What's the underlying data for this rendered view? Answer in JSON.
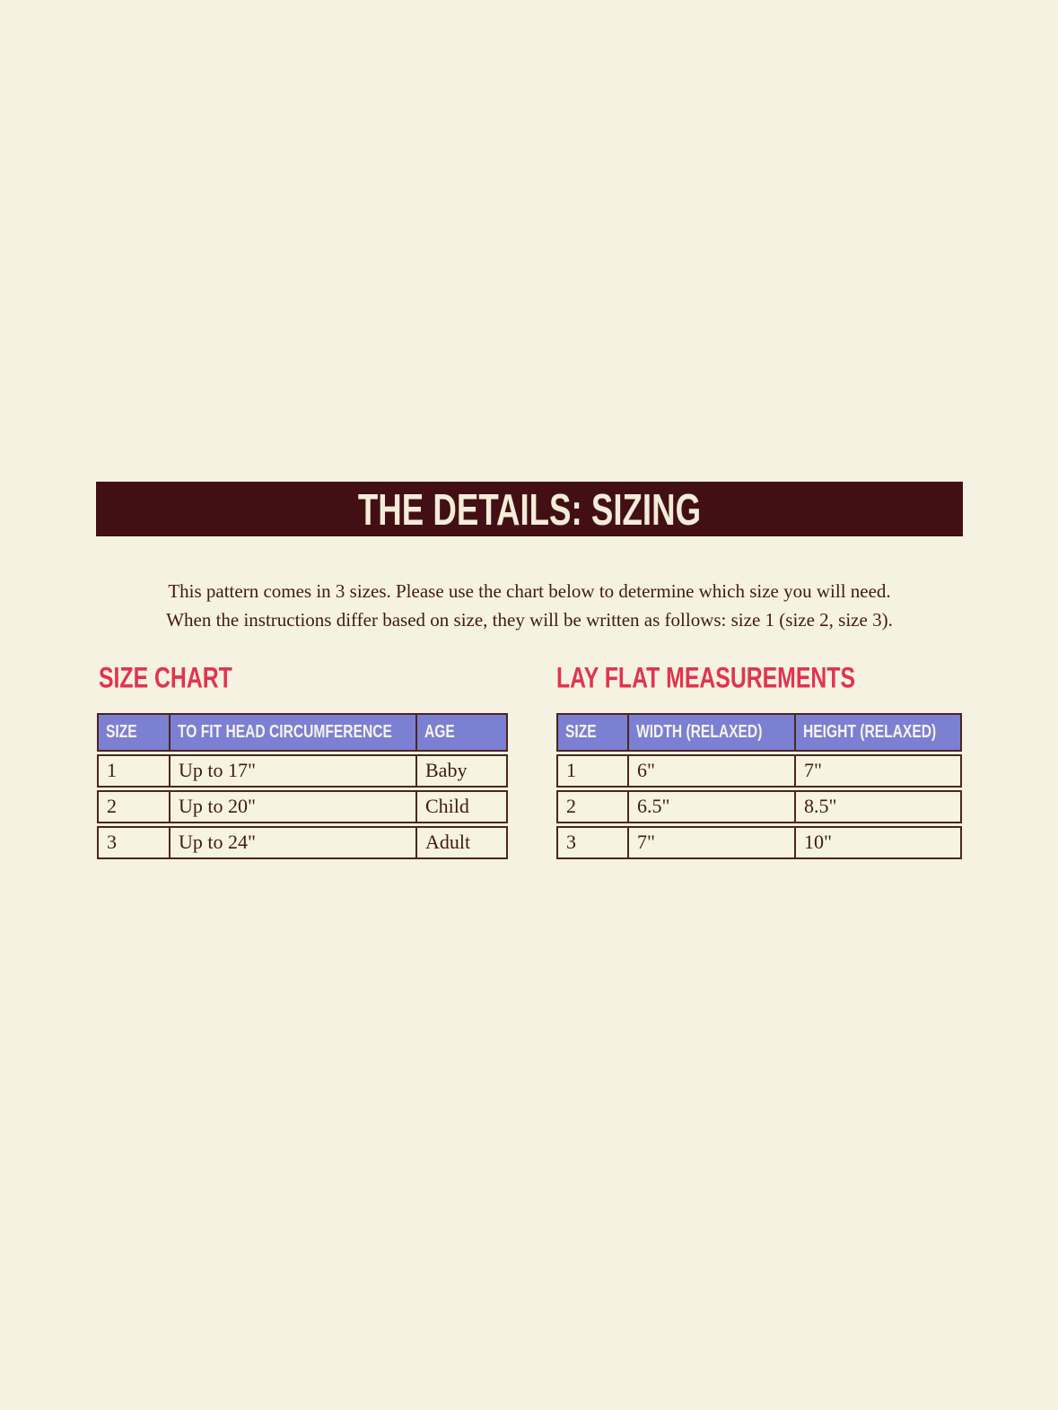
{
  "banner": {
    "title": "THE DETAILS: SIZING"
  },
  "intro": {
    "line1": "This pattern comes in 3 sizes. Please use the chart below to determine which size you will need.",
    "line2": "When the instructions differ based on size, they will be written as follows: size 1 (size 2, size 3)."
  },
  "size_chart": {
    "heading": "SIZE CHART",
    "columns": [
      "SIZE",
      "TO FIT HEAD CIRCUMFERENCE",
      "AGE"
    ],
    "rows": [
      [
        "1",
        "Up to 17\"",
        "Baby"
      ],
      [
        "2",
        "Up to 20\"",
        "Child"
      ],
      [
        "3",
        "Up to 24\"",
        "Adult"
      ]
    ]
  },
  "lay_flat": {
    "heading": "LAY FLAT MEASUREMENTS",
    "columns": [
      "SIZE",
      "WIDTH (RELAXED)",
      "HEIGHT (RELAXED)"
    ],
    "rows": [
      [
        "1",
        "6\"",
        "7\""
      ],
      [
        "2",
        "6.5\"",
        "8.5\""
      ],
      [
        "3",
        "7\"",
        "10\""
      ]
    ]
  },
  "colors": {
    "page_background": "#f6f2e1",
    "banner_maroon": "#421014",
    "banner_text": "#f3ecd8",
    "accent_red": "#e1344e",
    "table_header_purple": "#7b80d3",
    "table_border_brown": "#4b2520",
    "body_text_brown": "#3e1b12"
  }
}
